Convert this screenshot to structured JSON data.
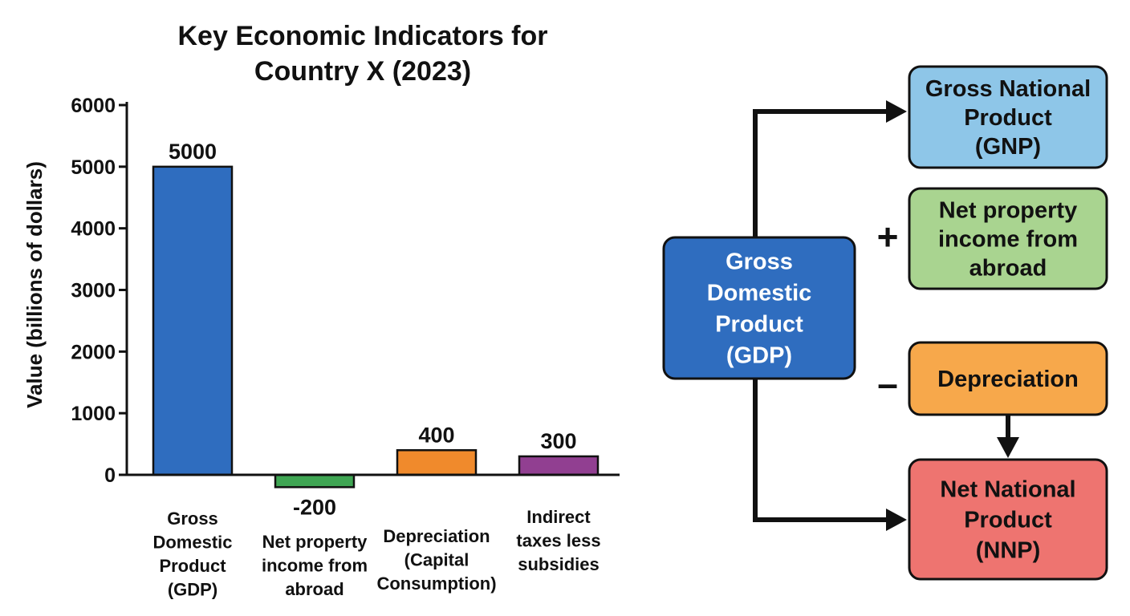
{
  "chart_data": {
    "type": "bar",
    "title": [
      "Key Economic Indicators for",
      "Country X (2023)"
    ],
    "ylabel": "Value (billions of dollars)",
    "xlabel": "",
    "ylim": [
      -200,
      6000
    ],
    "yticks": [
      0,
      1000,
      2000,
      3000,
      4000,
      5000,
      6000
    ],
    "grid": false,
    "categories": [
      [
        "Gross",
        "Domestic",
        "Product",
        "(GDP)"
      ],
      [
        "Net property",
        "income from",
        "abroad"
      ],
      [
        "Depreciation",
        "(Capital",
        "Consumption)"
      ],
      [
        "Indirect",
        "taxes less",
        "subsidies"
      ]
    ],
    "values": [
      5000,
      -200,
      400,
      300
    ],
    "value_labels": [
      "5000",
      "-200",
      "400",
      "300"
    ],
    "colors": [
      "#2F6DBF",
      "#3FA653",
      "#F08A2C",
      "#913F91"
    ]
  },
  "diagram": {
    "gdp": {
      "lines": [
        "Gross",
        "Domestic",
        "Product",
        "(GDP)"
      ],
      "fill": "#2F6DBF",
      "text_color": "#FFFFFF"
    },
    "gnp": {
      "lines": [
        "Gross National",
        "Product",
        "(GNP)"
      ],
      "fill": "#8EC6E8",
      "text_color": "#111111"
    },
    "npi": {
      "lines": [
        "Net property",
        "income from",
        "abroad"
      ],
      "fill": "#A9D490",
      "text_color": "#111111"
    },
    "dep": {
      "lines": [
        "Depreciation"
      ],
      "fill": "#F7A84B",
      "text_color": "#111111"
    },
    "nnp": {
      "lines": [
        "Net National",
        "Product",
        "(NNP)"
      ],
      "fill": "#EE7470",
      "text_color": "#111111"
    },
    "plus_sign": "+",
    "minus_sign": "–"
  }
}
